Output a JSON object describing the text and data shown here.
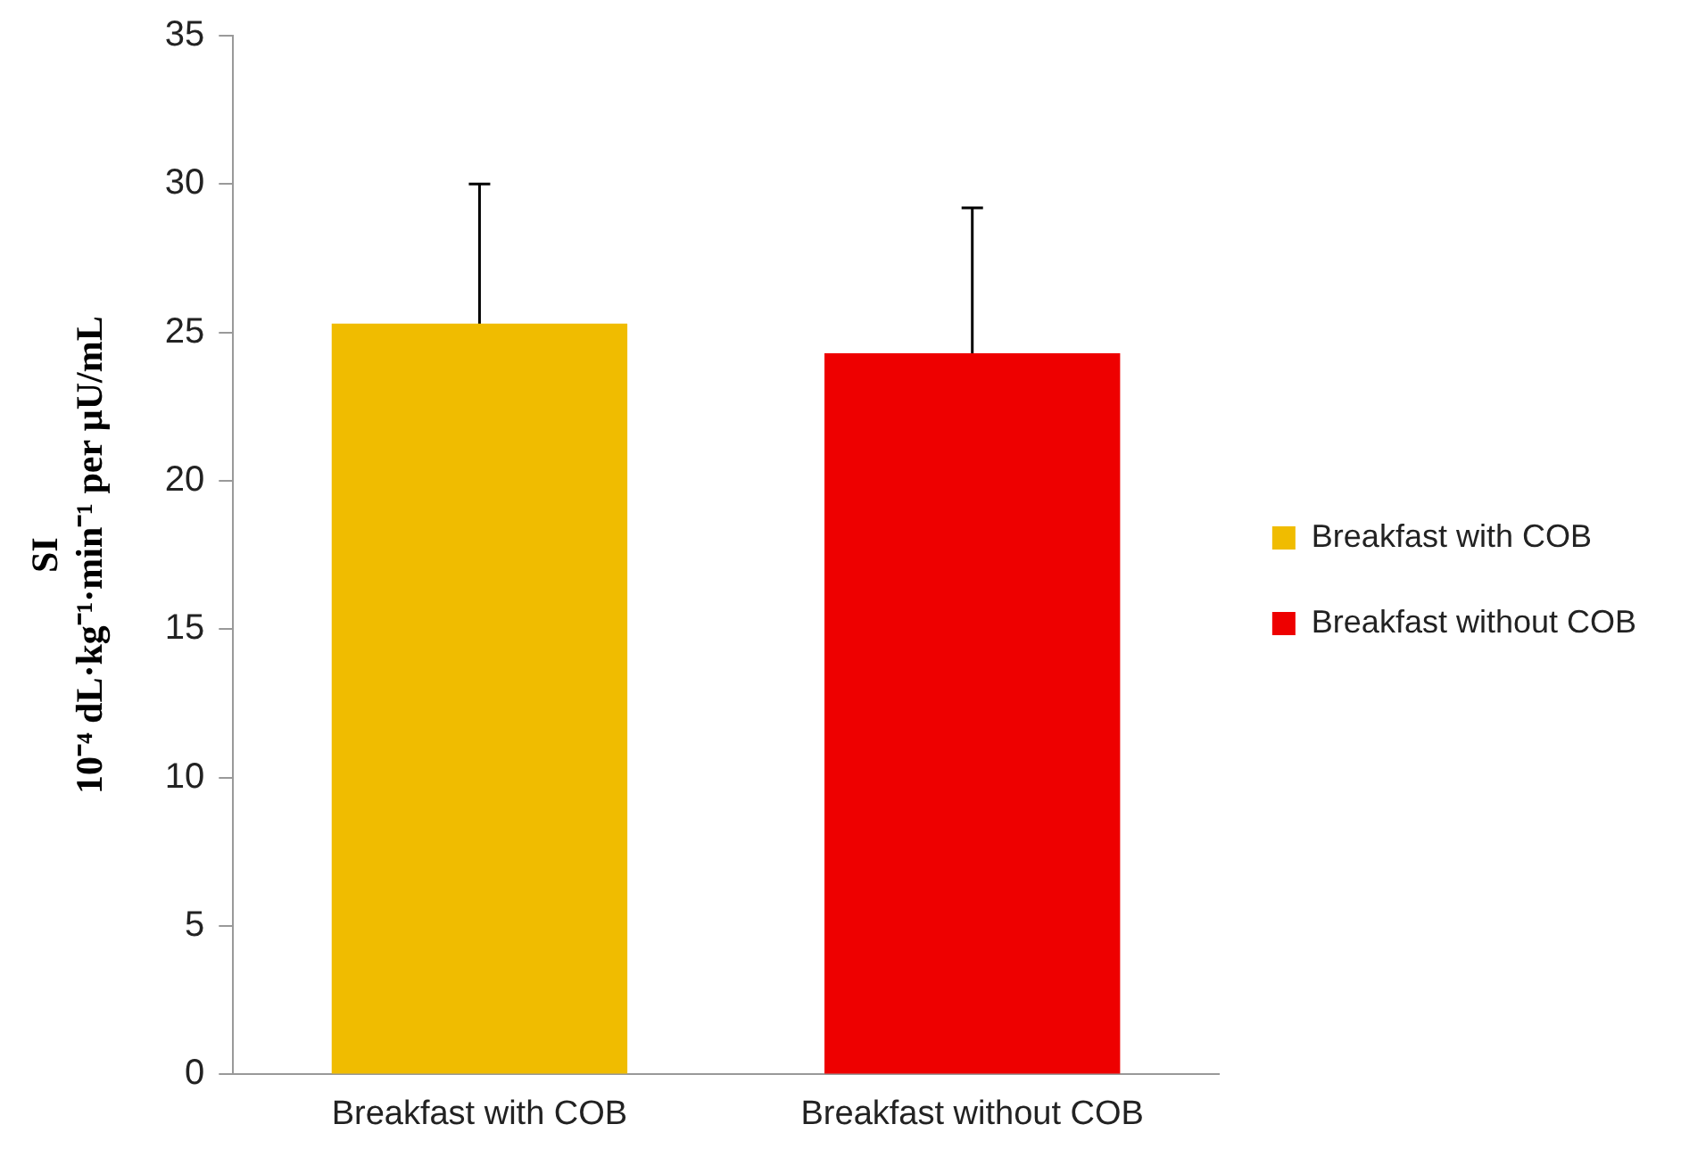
{
  "chart_data": {
    "type": "bar",
    "ylabel": "SI\n10⁻⁴ dL·kg⁻¹·min⁻¹ per μU/mL",
    "categories": [
      "Breakfast with COB",
      "Breakfast without COB"
    ],
    "series": [
      {
        "name": "Breakfast with COB",
        "color": "#f0bc00",
        "values": [
          25.3,
          null
        ],
        "errors": [
          4.7,
          null
        ]
      },
      {
        "name": "Breakfast without COB",
        "color": "#ee0000",
        "values": [
          null,
          24.3
        ],
        "errors": [
          null,
          4.9
        ]
      }
    ],
    "ylim": [
      0,
      35
    ],
    "yticks": [
      0,
      5,
      10,
      15,
      20,
      25,
      30,
      35
    ],
    "grid": false,
    "legend": "right"
  }
}
